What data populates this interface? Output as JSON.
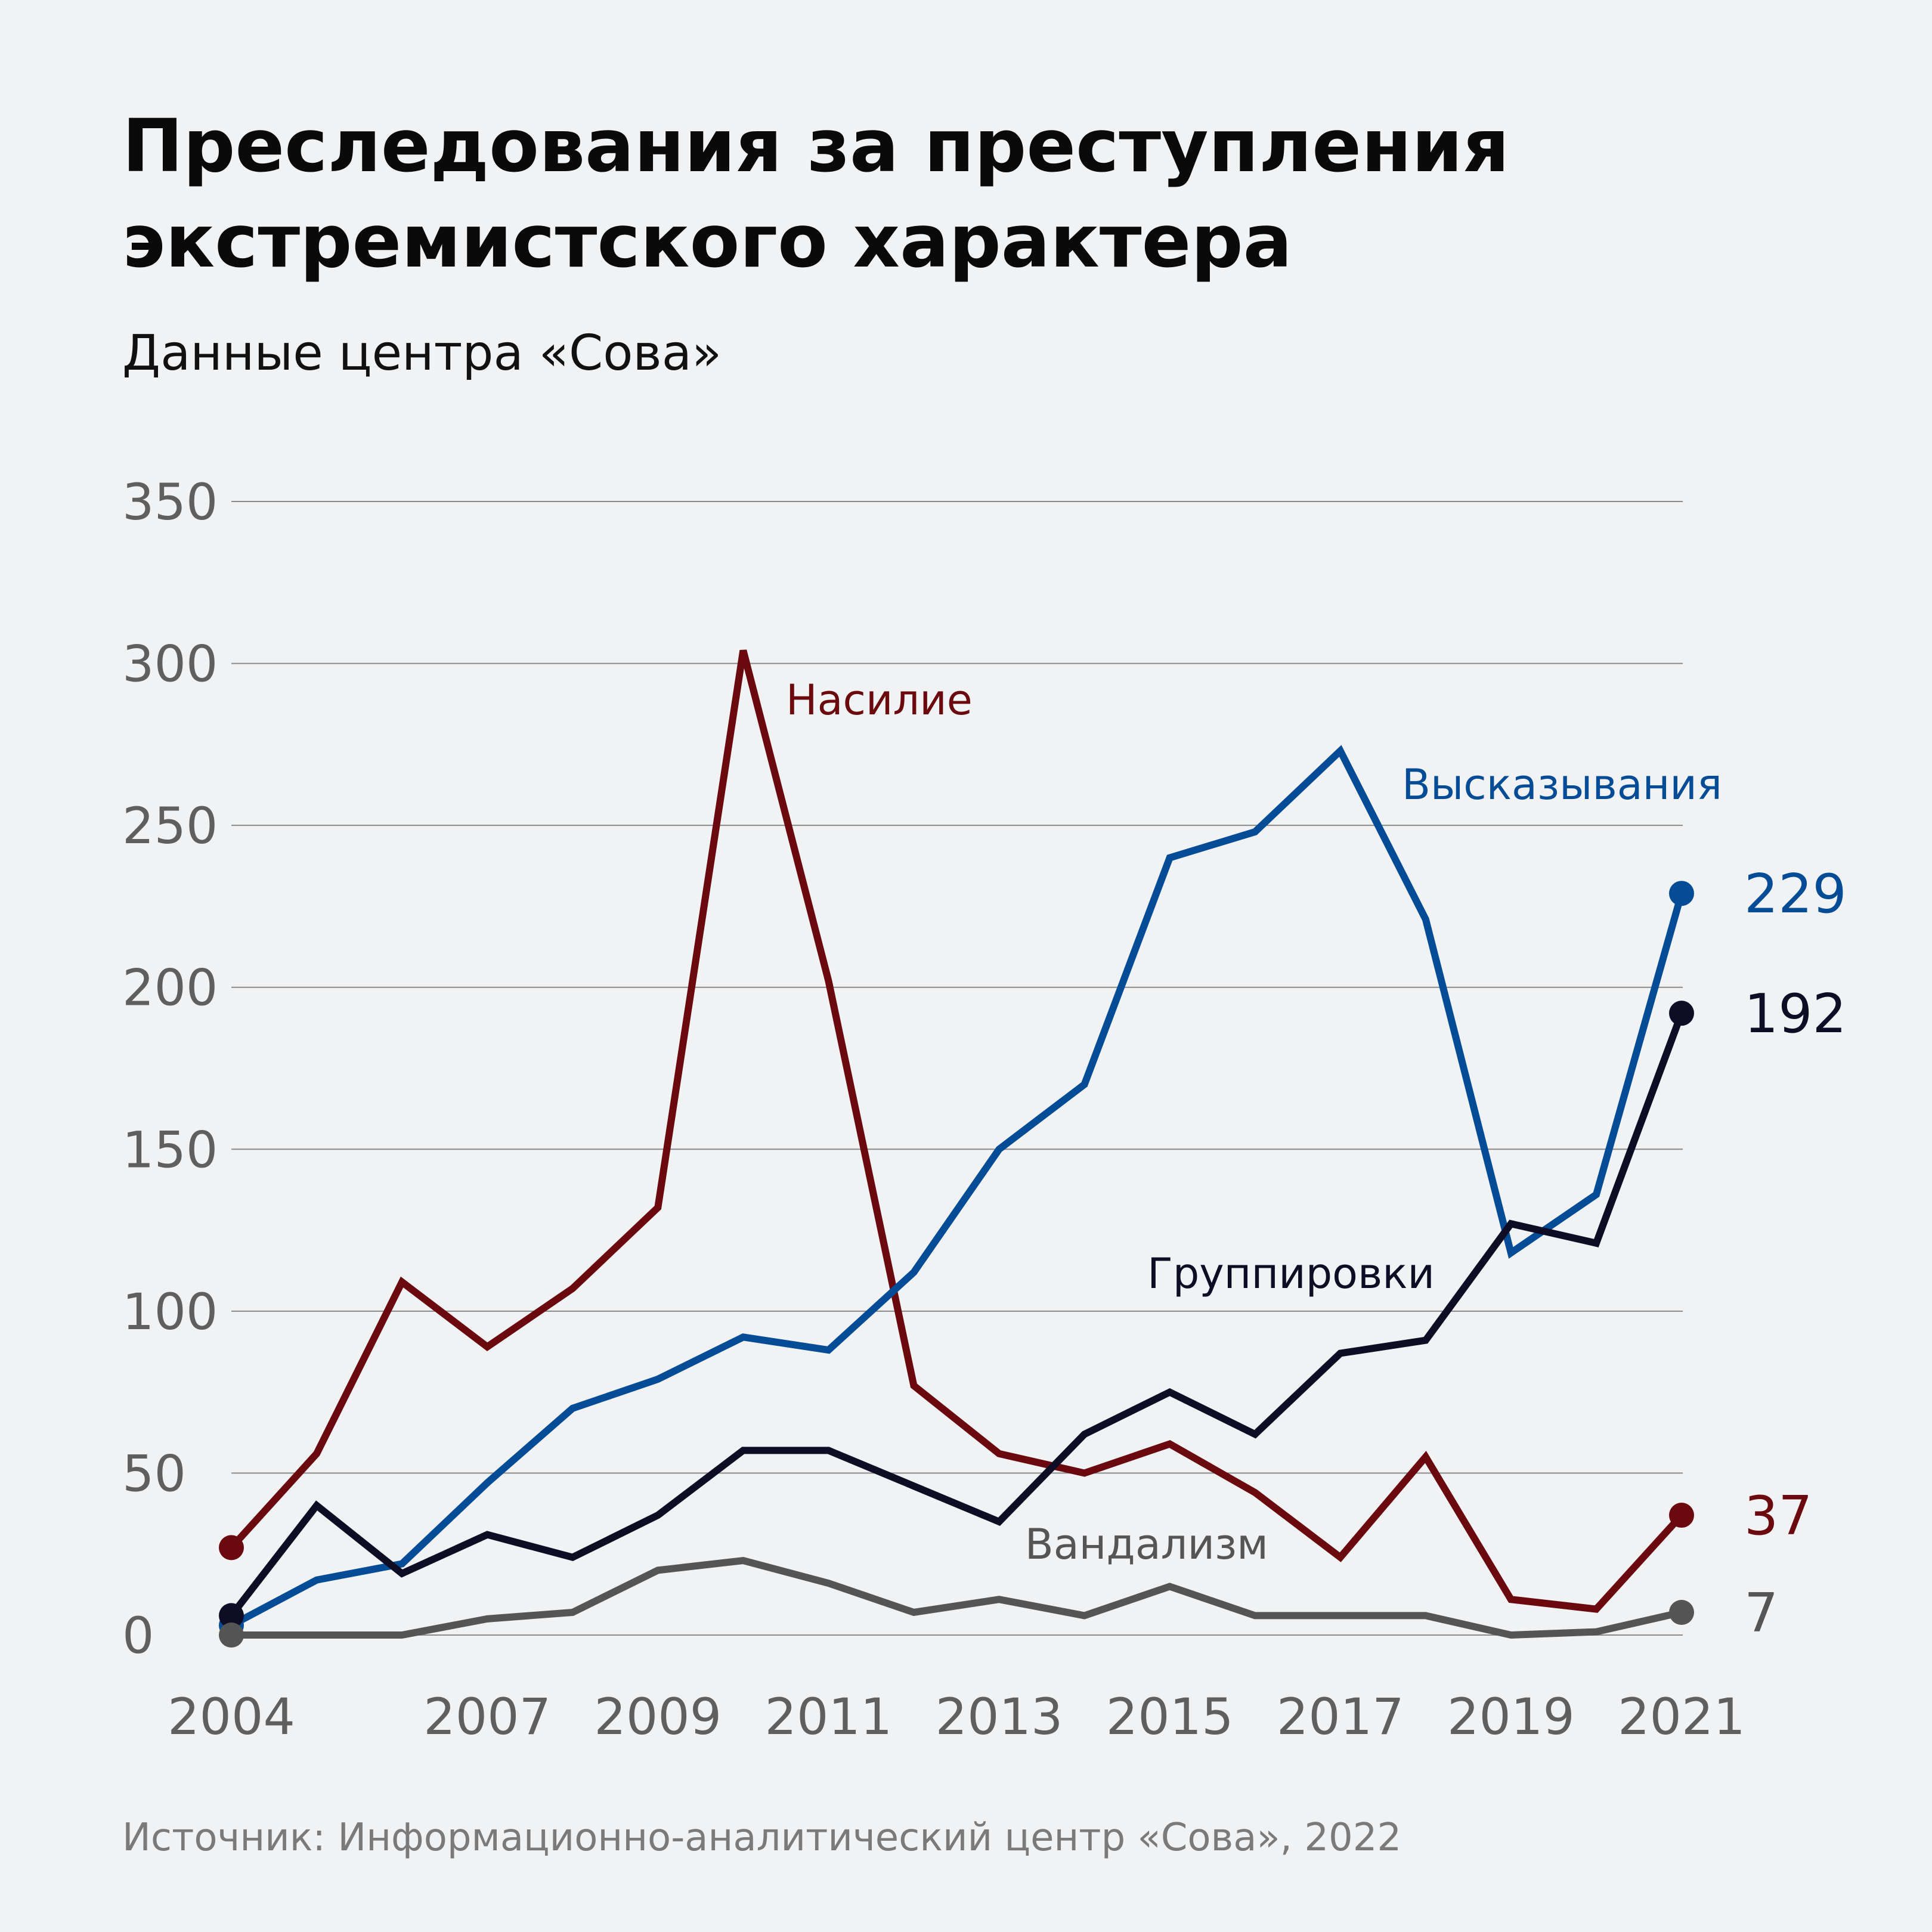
{
  "header": {
    "title_line1": "Преследования за преступления",
    "title_line2": "экстремистского характера",
    "subtitle": "Данные центра «Сова»"
  },
  "footer": {
    "source": "Источник: Информационно-аналитический центр «Сова», 2022"
  },
  "chart_data": {
    "type": "line",
    "title": "Преследования за преступления экстремистского характера",
    "subtitle": "Данные центра «Сова»",
    "xlabel": "",
    "ylabel": "",
    "ylim": [
      0,
      350
    ],
    "yticks": [
      0,
      50,
      100,
      150,
      200,
      250,
      300,
      350
    ],
    "xticks": [
      "2004",
      "2007",
      "2009",
      "2011",
      "2013",
      "2015",
      "2017",
      "2019",
      "2021"
    ],
    "grid": true,
    "x": [
      2004,
      2005,
      2006,
      2007,
      2008,
      2009,
      2010,
      2011,
      2012,
      2013,
      2014,
      2015,
      2016,
      2017,
      2018,
      2019,
      2020,
      2021
    ],
    "series": [
      {
        "name": "Насилие",
        "color": "#6b0a0e",
        "end_label": "37",
        "values": [
          27,
          56,
          109,
          89,
          107,
          132,
          304,
          202,
          77,
          56,
          50,
          59,
          44,
          24,
          55,
          11,
          8,
          37
        ]
      },
      {
        "name": "Высказывания",
        "color": "#044c95",
        "end_label": "229",
        "values": [
          3,
          17,
          22,
          47,
          70,
          79,
          92,
          88,
          112,
          150,
          170,
          240,
          248,
          273,
          221,
          118,
          136,
          229
        ]
      },
      {
        "name": "Группировки",
        "color": "#0f0d26",
        "end_label": "192",
        "values": [
          6,
          40,
          19,
          31,
          24,
          37,
          57,
          57,
          46,
          35,
          62,
          75,
          62,
          87,
          91,
          127,
          121,
          192
        ]
      },
      {
        "name": "Вандализм",
        "color": "#555555",
        "end_label": "7",
        "values": [
          0,
          0,
          0,
          5,
          7,
          20,
          23,
          16,
          7,
          11,
          6,
          15,
          6,
          6,
          6,
          0,
          1,
          7
        ]
      }
    ]
  }
}
